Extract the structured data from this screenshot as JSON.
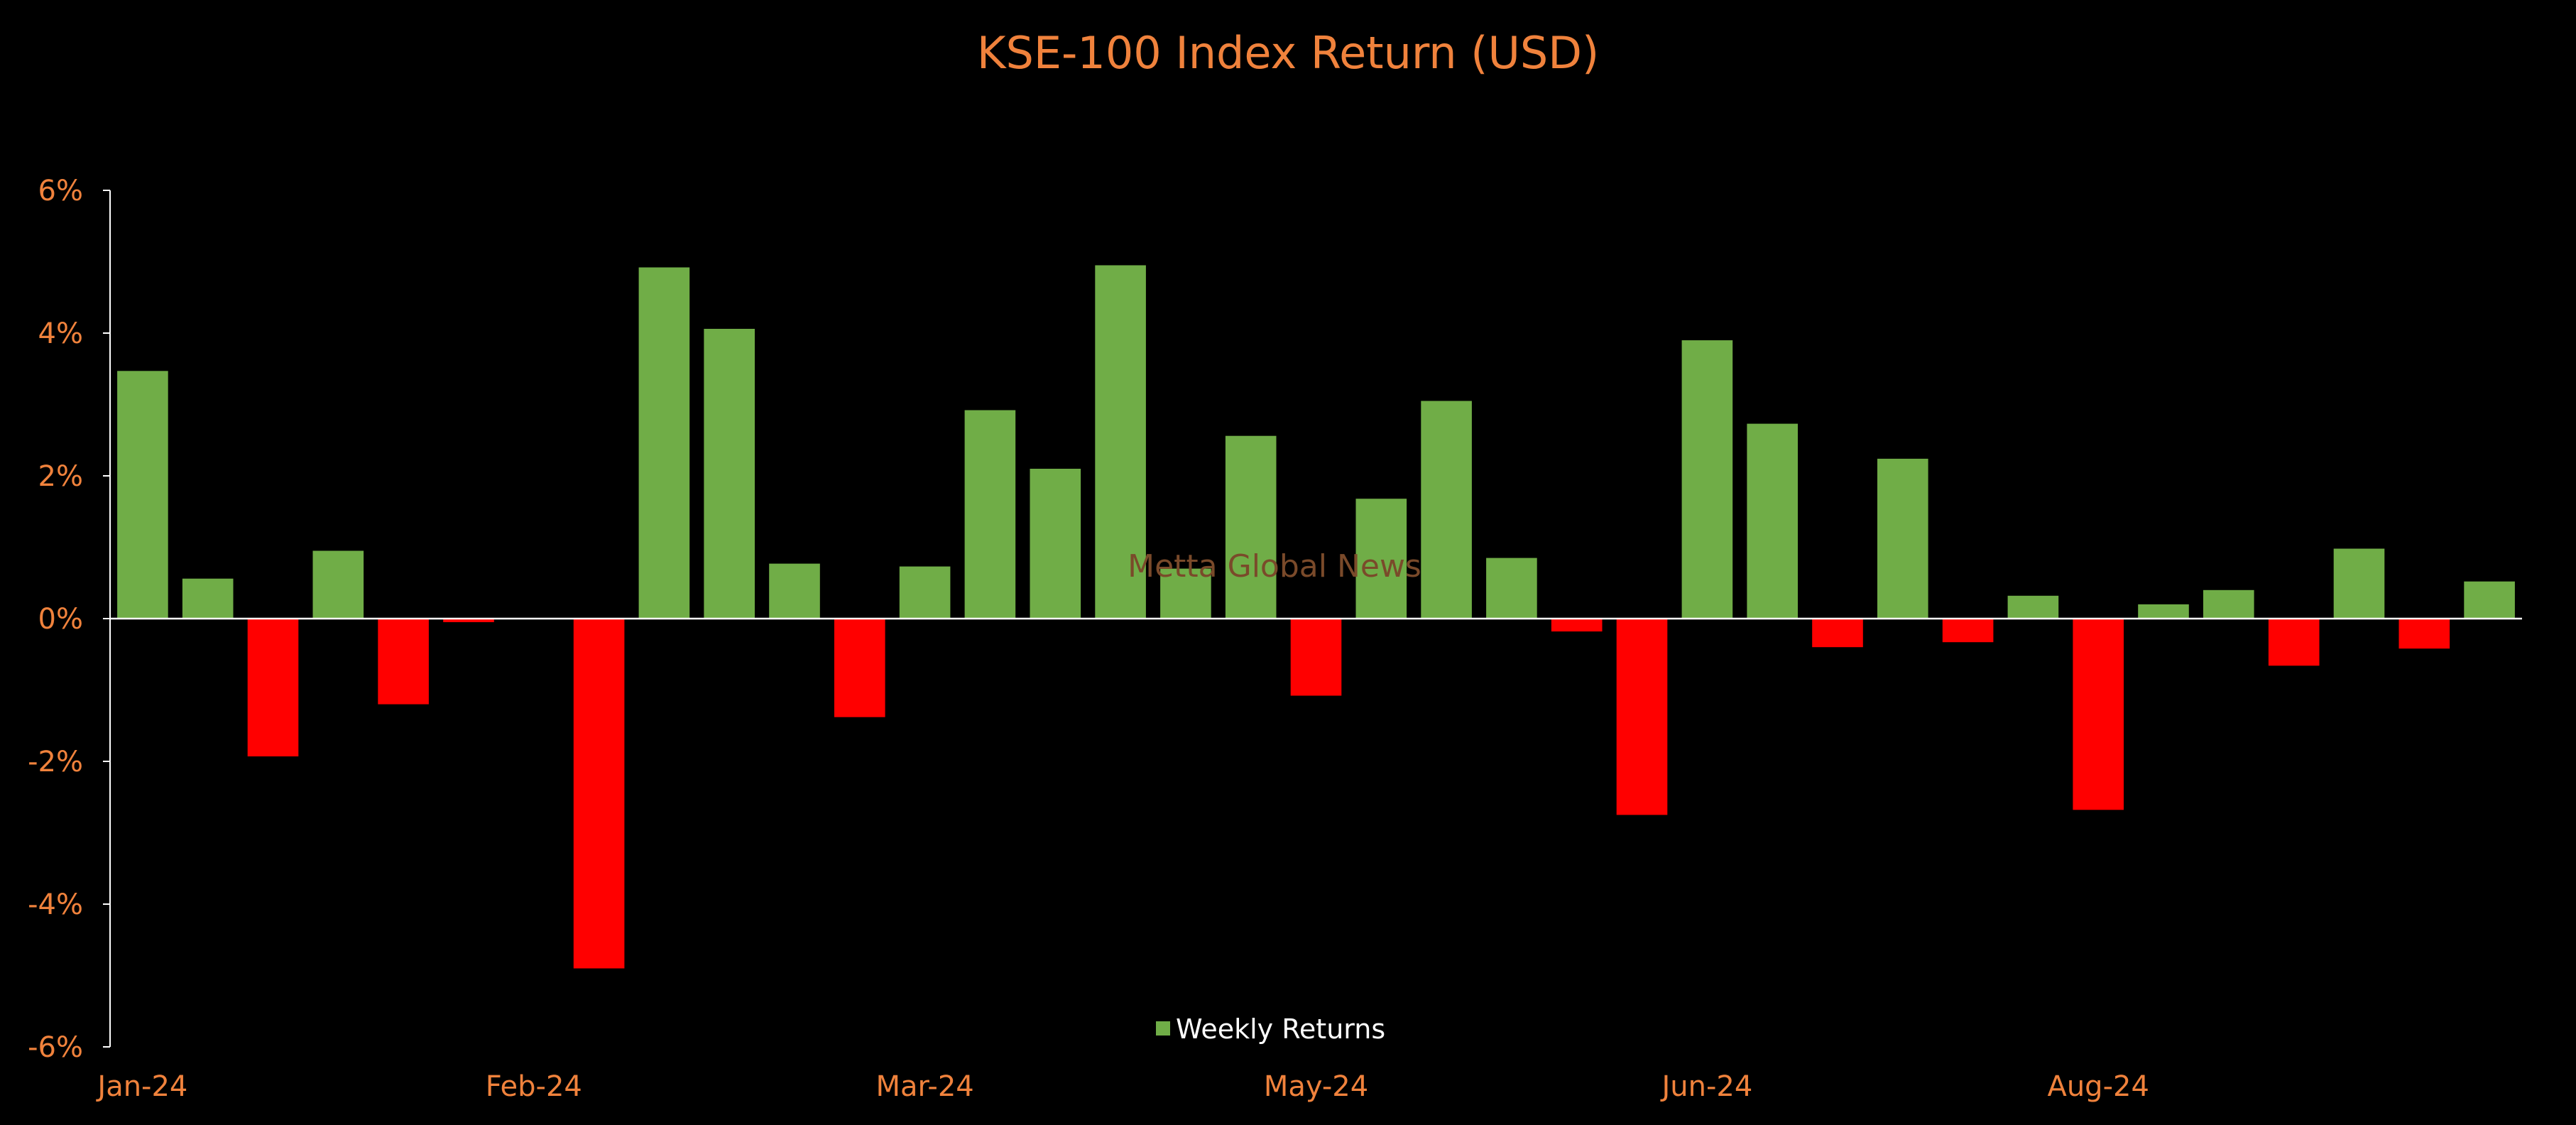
{
  "chart_data": {
    "type": "bar",
    "title": "KSE-100 Index Return (USD)",
    "xlabel": "",
    "ylabel": "",
    "ylim": [
      -6,
      6
    ],
    "y_ticks": [
      6,
      4,
      2,
      0,
      -2,
      -4,
      -6
    ],
    "y_tick_labels": [
      "6%",
      "4%",
      "2%",
      "0%",
      "-2%",
      "-4%",
      "-6%"
    ],
    "x_tick_labels": [
      "Jan-24",
      "Feb-24",
      "Mar-24",
      "May-24",
      "Jun-24",
      "Aug-24"
    ],
    "x_tick_positions": [
      0,
      6,
      12,
      18,
      24,
      30
    ],
    "series": [
      {
        "name": "Weekly Returns",
        "values": [
          3.47,
          0.56,
          -1.93,
          0.95,
          -1.2,
          -0.05,
          0,
          -4.9,
          4.92,
          4.06,
          0.77,
          -1.38,
          0.73,
          2.92,
          2.1,
          4.95,
          0.7,
          2.56,
          -1.08,
          1.68,
          3.05,
          0.85,
          -0.18,
          -2.75,
          3.9,
          2.73,
          -0.4,
          2.24,
          -0.33,
          0.32,
          -2.68,
          0.2,
          0.4,
          -0.66,
          0.98,
          -0.42,
          0.52
        ]
      }
    ],
    "colors": {
      "positive": "#70AD47",
      "negative": "#FF0000",
      "axis": "#FFFFFF",
      "text": "#F0823C"
    },
    "legend": {
      "label": "Weekly Returns",
      "position": "bottom-center"
    },
    "watermark": "Metta Global News",
    "grid": false
  }
}
